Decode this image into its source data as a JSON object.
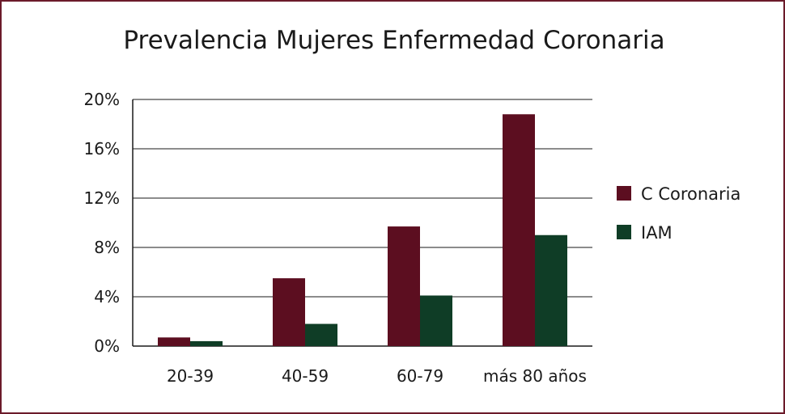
{
  "chart_data": {
    "type": "bar",
    "title": "Prevalencia Mujeres Enfermedad Coronaria",
    "categories": [
      "20-39",
      "40-59",
      "60-79",
      "más 80 años"
    ],
    "series": [
      {
        "name": "C Coronaria",
        "color": "#5c0e20",
        "values": [
          0.7,
          5.5,
          9.7,
          18.8
        ]
      },
      {
        "name": "IAM",
        "color": "#0f3d26",
        "values": [
          0.4,
          1.8,
          4.1,
          9.0
        ]
      }
    ],
    "y_ticks": [
      "0%",
      "4%",
      "8%",
      "12%",
      "16%",
      "20%"
    ],
    "ylim": [
      0,
      20
    ],
    "grid": true,
    "legend_position": "right",
    "xlabel": "",
    "ylabel": ""
  }
}
